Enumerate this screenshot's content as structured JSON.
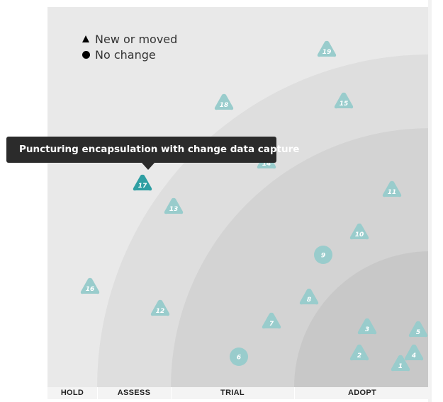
{
  "legend": {
    "new_or_moved": "New or moved",
    "no_change": "No change"
  },
  "rings": [
    "HOLD",
    "ASSESS",
    "TRIAL",
    "ADOPT"
  ],
  "tooltip": {
    "text": "Puncturing encapsulation with change data capture",
    "blip": "17"
  },
  "colors": {
    "blip": "#99cccc",
    "blip_active": "#2f9fa3",
    "ring_hold": "#e9e9e9",
    "ring_assess": "#dedede",
    "ring_trial": "#d3d3d3",
    "ring_adopt": "#c8c8c8"
  },
  "blips": [
    {
      "id": "1",
      "shape": "triangle"
    },
    {
      "id": "2",
      "shape": "triangle"
    },
    {
      "id": "3",
      "shape": "triangle"
    },
    {
      "id": "4",
      "shape": "triangle"
    },
    {
      "id": "5",
      "shape": "triangle"
    },
    {
      "id": "6",
      "shape": "circle"
    },
    {
      "id": "7",
      "shape": "triangle"
    },
    {
      "id": "8",
      "shape": "triangle"
    },
    {
      "id": "9",
      "shape": "circle"
    },
    {
      "id": "10",
      "shape": "triangle"
    },
    {
      "id": "11",
      "shape": "triangle"
    },
    {
      "id": "12",
      "shape": "triangle"
    },
    {
      "id": "13",
      "shape": "triangle"
    },
    {
      "id": "14",
      "shape": "triangle"
    },
    {
      "id": "15",
      "shape": "triangle"
    },
    {
      "id": "16",
      "shape": "triangle"
    },
    {
      "id": "17",
      "shape": "triangle",
      "active": true
    },
    {
      "id": "18",
      "shape": "triangle"
    },
    {
      "id": "19",
      "shape": "triangle"
    }
  ]
}
